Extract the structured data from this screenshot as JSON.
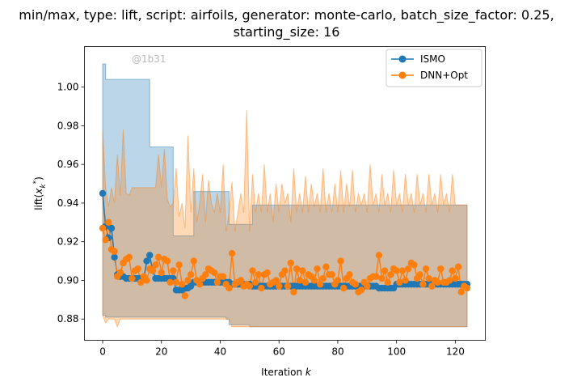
{
  "chart_data": {
    "type": "line",
    "title_line1": "min/max, type: lift, script: airfoils, generator: monte-carlo, batch_size_factor: 0.25,",
    "title_line2": "starting_size: 16",
    "xlabel_text": "Iteration ",
    "xlabel_var": "k",
    "ylabel": "lift(x*k)",
    "watermark": "@1b31",
    "xlim": [
      -6.2,
      130.2
    ],
    "ylim": [
      0.869,
      1.021
    ],
    "xticks": [
      0,
      20,
      40,
      60,
      80,
      100,
      120
    ],
    "yticks": [
      0.88,
      0.9,
      0.92,
      0.94,
      0.96,
      0.98,
      1.0
    ],
    "ytick_labels": [
      "0.88",
      "0.90",
      "0.92",
      "0.94",
      "0.96",
      "0.98",
      "1.00"
    ],
    "legend_position": "upper right",
    "colors": {
      "ISMO": "#1f77b4",
      "DNN+Opt": "#ff7f0e"
    },
    "series": [
      {
        "name": "ISMO",
        "x": [
          0,
          1,
          2,
          3,
          4,
          5,
          6,
          7,
          8,
          9,
          10,
          11,
          12,
          13,
          14,
          15,
          16,
          17,
          18,
          19,
          20,
          21,
          22,
          23,
          24,
          25,
          26,
          27,
          28,
          29,
          30,
          31,
          32,
          33,
          34,
          35,
          36,
          37,
          38,
          39,
          40,
          41,
          42,
          43,
          44,
          45,
          46,
          47,
          48,
          49,
          50,
          51,
          52,
          53,
          54,
          55,
          56,
          57,
          58,
          59,
          60,
          61,
          62,
          63,
          64,
          65,
          66,
          67,
          68,
          69,
          70,
          71,
          72,
          73,
          74,
          75,
          76,
          77,
          78,
          79,
          80,
          81,
          82,
          83,
          84,
          85,
          86,
          87,
          88,
          89,
          90,
          91,
          92,
          93,
          94,
          95,
          96,
          97,
          98,
          99,
          100,
          101,
          102,
          103,
          104,
          105,
          106,
          107,
          108,
          109,
          110,
          111,
          112,
          113,
          114,
          115,
          116,
          117,
          118,
          119,
          120,
          121,
          122,
          123,
          124
        ],
        "mean": [
          0.945,
          0.928,
          0.922,
          0.927,
          0.912,
          0.903,
          0.902,
          0.902,
          0.901,
          0.901,
          0.901,
          0.901,
          0.901,
          0.901,
          0.901,
          0.91,
          0.913,
          0.905,
          0.901,
          0.901,
          0.901,
          0.901,
          0.901,
          0.901,
          0.901,
          0.895,
          0.895,
          0.895,
          0.896,
          0.896,
          0.897,
          0.899,
          0.899,
          0.899,
          0.899,
          0.899,
          0.899,
          0.899,
          0.899,
          0.899,
          0.899,
          0.899,
          0.899,
          0.899,
          0.898,
          0.898,
          0.898,
          0.898,
          0.898,
          0.898,
          0.898,
          0.897,
          0.897,
          0.897,
          0.897,
          0.897,
          0.897,
          0.897,
          0.897,
          0.897,
          0.897,
          0.897,
          0.897,
          0.897,
          0.897,
          0.897,
          0.897,
          0.897,
          0.897,
          0.897,
          0.897,
          0.897,
          0.897,
          0.897,
          0.897,
          0.897,
          0.897,
          0.897,
          0.897,
          0.897,
          0.897,
          0.897,
          0.897,
          0.897,
          0.897,
          0.897,
          0.897,
          0.897,
          0.897,
          0.897,
          0.897,
          0.897,
          0.897,
          0.897,
          0.896,
          0.896,
          0.896,
          0.896,
          0.896,
          0.896,
          0.898,
          0.898,
          0.898,
          0.898,
          0.898,
          0.898,
          0.898,
          0.898,
          0.898,
          0.898,
          0.898,
          0.898,
          0.898,
          0.898,
          0.898,
          0.898,
          0.898,
          0.898,
          0.898,
          0.898,
          0.898,
          0.898,
          0.898,
          0.898,
          0.898
        ],
        "band_x": [
          0,
          1,
          2,
          3,
          10,
          15,
          16,
          17,
          22,
          24,
          25,
          26,
          30,
          31,
          38,
          39,
          42,
          43,
          44,
          45,
          50,
          51,
          55,
          62,
          70,
          80,
          86,
          90,
          95,
          100,
          120,
          124
        ],
        "band_min": [
          0.882,
          0.882,
          0.881,
          0.881,
          0.881,
          0.881,
          0.881,
          0.881,
          0.881,
          0.881,
          0.881,
          0.881,
          0.881,
          0.881,
          0.881,
          0.881,
          0.881,
          0.88,
          0.877,
          0.877,
          0.877,
          0.876,
          0.876,
          0.876,
          0.876,
          0.876,
          0.876,
          0.876,
          0.876,
          0.876,
          0.876,
          0.876
        ],
        "band_max": [
          1.012,
          1.004,
          1.004,
          1.004,
          1.004,
          1.004,
          0.969,
          0.969,
          0.969,
          0.923,
          0.923,
          0.923,
          0.923,
          0.946,
          0.946,
          0.946,
          0.946,
          0.929,
          0.929,
          0.929,
          0.929,
          0.939,
          0.939,
          0.939,
          0.939,
          0.939,
          0.939,
          0.939,
          0.939,
          0.939,
          0.939,
          0.939
        ]
      },
      {
        "name": "DNN+Opt",
        "x": [
          0,
          1,
          2,
          3,
          4,
          5,
          6,
          7,
          8,
          9,
          10,
          11,
          12,
          13,
          14,
          15,
          16,
          17,
          18,
          19,
          20,
          21,
          22,
          23,
          24,
          25,
          26,
          27,
          28,
          29,
          30,
          31,
          32,
          33,
          34,
          35,
          36,
          37,
          38,
          39,
          40,
          41,
          42,
          43,
          44,
          45,
          46,
          47,
          48,
          49,
          50,
          51,
          52,
          53,
          54,
          55,
          56,
          57,
          58,
          59,
          60,
          61,
          62,
          63,
          64,
          65,
          66,
          67,
          68,
          69,
          70,
          71,
          72,
          73,
          74,
          75,
          76,
          77,
          78,
          79,
          80,
          81,
          82,
          83,
          84,
          85,
          86,
          87,
          88,
          89,
          90,
          91,
          92,
          93,
          94,
          95,
          96,
          97,
          98,
          99,
          100,
          101,
          102,
          103,
          104,
          105,
          106,
          107,
          108,
          109,
          110,
          111,
          112,
          113,
          114,
          115,
          116,
          117,
          118,
          119,
          120,
          121,
          122,
          123,
          124
        ],
        "mean": [
          0.927,
          0.921,
          0.93,
          0.916,
          0.915,
          0.902,
          0.904,
          0.909,
          0.911,
          0.912,
          0.901,
          0.905,
          0.906,
          0.899,
          0.902,
          0.9,
          0.906,
          0.905,
          0.908,
          0.912,
          0.904,
          0.911,
          0.91,
          0.899,
          0.905,
          0.899,
          0.908,
          0.898,
          0.892,
          0.9,
          0.903,
          0.91,
          0.9,
          0.898,
          0.901,
          0.903,
          0.906,
          0.905,
          0.904,
          0.899,
          0.902,
          0.902,
          0.898,
          0.896,
          0.914,
          0.898,
          0.899,
          0.9,
          0.897,
          0.898,
          0.897,
          0.905,
          0.899,
          0.903,
          0.896,
          0.903,
          0.904,
          0.898,
          0.899,
          0.9,
          0.897,
          0.903,
          0.905,
          0.897,
          0.909,
          0.894,
          0.906,
          0.9,
          0.905,
          0.899,
          0.903,
          0.902,
          0.9,
          0.906,
          0.898,
          0.901,
          0.907,
          0.903,
          0.903,
          0.898,
          0.9,
          0.91,
          0.896,
          0.901,
          0.903,
          0.899,
          0.898,
          0.894,
          0.895,
          0.899,
          0.897,
          0.901,
          0.902,
          0.902,
          0.913,
          0.901,
          0.905,
          0.899,
          0.903,
          0.906,
          0.905,
          0.899,
          0.905,
          0.9,
          0.906,
          0.909,
          0.908,
          0.901,
          0.903,
          0.898,
          0.906,
          0.901,
          0.897,
          0.9,
          0.899,
          0.906,
          0.899,
          0.899,
          0.9,
          0.905,
          0.901,
          0.907,
          0.894,
          0.897,
          0.896
        ],
        "band_x": [
          0,
          1,
          2,
          3,
          4,
          5,
          6,
          7,
          8,
          9,
          10,
          11,
          12,
          13,
          14,
          15,
          16,
          17,
          18,
          19,
          20,
          21,
          22,
          23,
          24,
          25,
          26,
          27,
          28,
          29,
          30,
          31,
          32,
          33,
          34,
          35,
          36,
          37,
          38,
          39,
          40,
          41,
          42,
          43,
          44,
          45,
          46,
          47,
          48,
          49,
          50,
          51,
          52,
          53,
          54,
          55,
          56,
          57,
          58,
          59,
          60,
          61,
          62,
          63,
          64,
          65,
          66,
          67,
          68,
          69,
          70,
          71,
          72,
          73,
          74,
          75,
          76,
          77,
          78,
          79,
          80,
          81,
          82,
          83,
          84,
          85,
          86,
          87,
          88,
          89,
          90,
          91,
          92,
          93,
          94,
          95,
          96,
          97,
          98,
          99,
          100,
          101,
          102,
          103,
          104,
          105,
          106,
          107,
          108,
          109,
          110,
          111,
          112,
          113,
          114,
          115,
          116,
          117,
          118,
          119,
          120,
          121,
          122,
          123,
          124
        ],
        "band_min": [
          0.882,
          0.878,
          0.88,
          0.88,
          0.88,
          0.876,
          0.88,
          0.88,
          0.88,
          0.88,
          0.88,
          0.88,
          0.88,
          0.88,
          0.88,
          0.88,
          0.88,
          0.88,
          0.88,
          0.88,
          0.88,
          0.88,
          0.88,
          0.88,
          0.88,
          0.88,
          0.88,
          0.88,
          0.88,
          0.88,
          0.88,
          0.88,
          0.88,
          0.88,
          0.88,
          0.88,
          0.88,
          0.88,
          0.88,
          0.88,
          0.88,
          0.88,
          0.88,
          0.88,
          0.876,
          0.876,
          0.876,
          0.876,
          0.876,
          0.876,
          0.876,
          0.876,
          0.876,
          0.876,
          0.876,
          0.876,
          0.876,
          0.876,
          0.876,
          0.876,
          0.876,
          0.876,
          0.876,
          0.876,
          0.876,
          0.876,
          0.876,
          0.876,
          0.876,
          0.876,
          0.876,
          0.876,
          0.876,
          0.876,
          0.876,
          0.876,
          0.876,
          0.876,
          0.876,
          0.876,
          0.876,
          0.876,
          0.876,
          0.876,
          0.876,
          0.876,
          0.876,
          0.876,
          0.876,
          0.876,
          0.876,
          0.876,
          0.876,
          0.876,
          0.876,
          0.876,
          0.876,
          0.876,
          0.876,
          0.876,
          0.876,
          0.876,
          0.876,
          0.876,
          0.876,
          0.876,
          0.876,
          0.876,
          0.876,
          0.876,
          0.876,
          0.876,
          0.876,
          0.876,
          0.876,
          0.876,
          0.876,
          0.876,
          0.876,
          0.876,
          0.876,
          0.876,
          0.876,
          0.876,
          0.876
        ],
        "band_max": [
          0.977,
          0.948,
          0.938,
          0.948,
          0.94,
          0.965,
          0.944,
          0.978,
          0.945,
          0.944,
          0.948,
          0.948,
          0.948,
          0.948,
          0.948,
          0.948,
          0.948,
          0.948,
          0.948,
          0.965,
          0.948,
          0.968,
          0.942,
          0.938,
          0.94,
          0.958,
          0.933,
          0.94,
          0.927,
          0.975,
          0.935,
          0.958,
          0.93,
          0.94,
          0.955,
          0.93,
          0.952,
          0.94,
          0.935,
          0.945,
          0.935,
          0.96,
          0.925,
          0.935,
          0.951,
          0.925,
          0.935,
          0.945,
          0.935,
          0.988,
          0.925,
          0.955,
          0.935,
          0.945,
          0.935,
          0.96,
          0.935,
          0.945,
          0.93,
          0.95,
          0.935,
          0.95,
          0.94,
          0.945,
          0.93,
          0.958,
          0.935,
          0.945,
          0.935,
          0.954,
          0.935,
          0.95,
          0.938,
          0.945,
          0.935,
          0.958,
          0.935,
          0.945,
          0.935,
          0.95,
          0.935,
          0.957,
          0.935,
          0.95,
          0.938,
          0.957,
          0.935,
          0.945,
          0.939,
          0.945,
          0.935,
          0.96,
          0.939,
          0.945,
          0.935,
          0.955,
          0.939,
          0.945,
          0.935,
          0.957,
          0.939,
          0.945,
          0.935,
          0.955,
          0.939,
          0.945,
          0.935,
          0.955,
          0.939,
          0.945,
          0.935,
          0.955,
          0.939,
          0.945,
          0.935,
          0.955,
          0.939,
          0.945,
          0.935,
          0.955,
          0.939,
          0.939,
          0.939,
          0.939,
          0.939
        ]
      }
    ]
  }
}
